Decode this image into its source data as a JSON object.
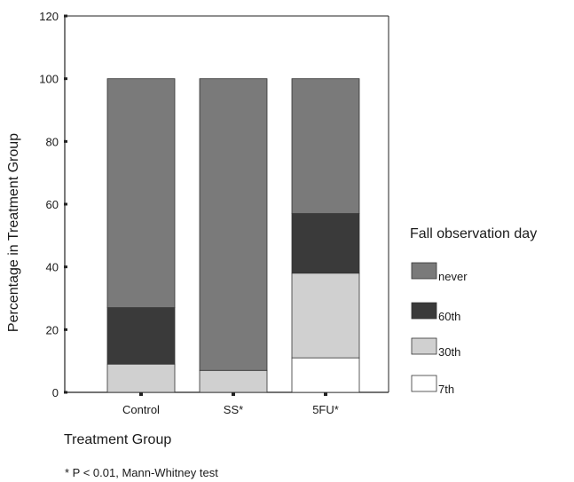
{
  "chart_data": {
    "type": "bar",
    "stacked": true,
    "categories": [
      "Control",
      "SS*",
      "5FU*"
    ],
    "series": [
      {
        "name": "7th",
        "values": [
          0,
          0,
          11
        ],
        "color": "#ffffff"
      },
      {
        "name": "30th",
        "values": [
          9,
          7,
          27
        ],
        "color": "#d0d0d0"
      },
      {
        "name": "60th",
        "values": [
          18,
          0,
          19
        ],
        "color": "#3a3a3a"
      },
      {
        "name": "never",
        "values": [
          73,
          93,
          43
        ],
        "color": "#7a7a7a"
      }
    ],
    "xlabel": "Treatment Group",
    "ylabel": "Percentage in Treatment Group",
    "ylim": [
      0,
      120
    ],
    "yticks": [
      0,
      20,
      40,
      60,
      80,
      100,
      120
    ],
    "legend_title": "Fall observation day",
    "legend_order": [
      "never",
      "60th",
      "30th",
      "7th"
    ],
    "legend_position": "right",
    "grid": false
  },
  "footnote": "* P < 0.01, Mann-Whitney test"
}
